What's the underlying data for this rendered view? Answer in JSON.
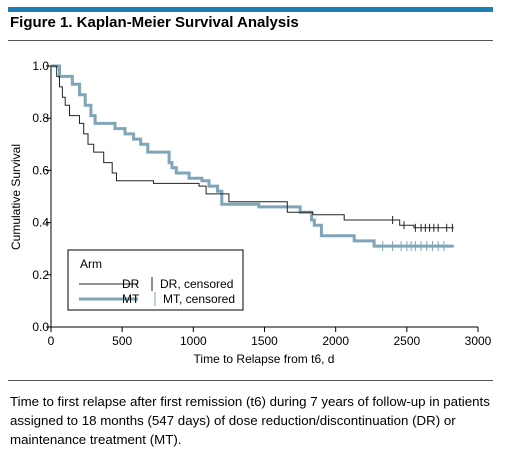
{
  "figure": {
    "title": "Figure 1. Kaplan-Meier Survival Analysis",
    "caption": "Time to first relapse after first remission (t6) during 7 years of follow-up in patients assigned to 18 months (547 days) of dose reduction/discontinuation (DR) or maintenance treatment (MT)."
  },
  "colors": {
    "accent_bar": "#1d7db5",
    "DR": "#222222",
    "MT": "#7fa5b8"
  },
  "chart_data": {
    "type": "line",
    "subtype": "kaplan-meier step",
    "xlabel": "Time to Relapse from t6, d",
    "ylabel": "Cumulative Survival",
    "xlim": [
      0,
      3000
    ],
    "ylim": [
      0,
      1.0
    ],
    "x_ticks": [
      "0",
      "500",
      "1000",
      "1500",
      "2000",
      "2500",
      "3000"
    ],
    "y_ticks": [
      "0.0",
      "0.2",
      "0.4",
      "0.6",
      "0.8",
      "1.0"
    ],
    "grid": false,
    "legend": {
      "title": "Arm",
      "placement": "bottom-left",
      "entries": [
        {
          "series": "DR",
          "label": "DR",
          "censored_label": "DR, censored"
        },
        {
          "series": "MT",
          "label": "MT",
          "censored_label": "MT, censored"
        }
      ]
    },
    "series": [
      {
        "name": "DR",
        "points": [
          [
            0,
            1.0
          ],
          [
            40,
            1.0
          ],
          [
            40,
            0.96
          ],
          [
            60,
            0.96
          ],
          [
            60,
            0.92
          ],
          [
            80,
            0.92
          ],
          [
            80,
            0.88
          ],
          [
            100,
            0.88
          ],
          [
            100,
            0.85
          ],
          [
            130,
            0.85
          ],
          [
            130,
            0.81
          ],
          [
            200,
            0.81
          ],
          [
            200,
            0.78
          ],
          [
            230,
            0.78
          ],
          [
            230,
            0.74
          ],
          [
            260,
            0.74
          ],
          [
            260,
            0.7
          ],
          [
            300,
            0.7
          ],
          [
            300,
            0.67
          ],
          [
            370,
            0.67
          ],
          [
            370,
            0.63
          ],
          [
            430,
            0.63
          ],
          [
            430,
            0.59
          ],
          [
            460,
            0.59
          ],
          [
            460,
            0.56
          ],
          [
            720,
            0.56
          ],
          [
            720,
            0.55
          ],
          [
            1040,
            0.55
          ],
          [
            1040,
            0.54
          ],
          [
            1090,
            0.54
          ],
          [
            1090,
            0.51
          ],
          [
            1250,
            0.51
          ],
          [
            1250,
            0.48
          ],
          [
            1660,
            0.48
          ],
          [
            1660,
            0.44
          ],
          [
            1840,
            0.44
          ],
          [
            1840,
            0.43
          ],
          [
            2060,
            0.43
          ],
          [
            2060,
            0.41
          ],
          [
            2450,
            0.41
          ],
          [
            2450,
            0.39
          ],
          [
            2550,
            0.39
          ],
          [
            2550,
            0.38
          ],
          [
            2830,
            0.38
          ]
        ],
        "censored_x": [
          2400,
          2480,
          2560,
          2600,
          2630,
          2660,
          2690,
          2720,
          2780,
          2820
        ]
      },
      {
        "name": "MT",
        "points": [
          [
            0,
            1.0
          ],
          [
            60,
            1.0
          ],
          [
            60,
            0.96
          ],
          [
            150,
            0.96
          ],
          [
            150,
            0.93
          ],
          [
            200,
            0.93
          ],
          [
            200,
            0.89
          ],
          [
            240,
            0.89
          ],
          [
            240,
            0.85
          ],
          [
            280,
            0.85
          ],
          [
            280,
            0.81
          ],
          [
            310,
            0.81
          ],
          [
            310,
            0.78
          ],
          [
            450,
            0.78
          ],
          [
            450,
            0.76
          ],
          [
            520,
            0.76
          ],
          [
            520,
            0.74
          ],
          [
            580,
            0.74
          ],
          [
            580,
            0.72
          ],
          [
            630,
            0.72
          ],
          [
            630,
            0.7
          ],
          [
            680,
            0.7
          ],
          [
            680,
            0.67
          ],
          [
            830,
            0.67
          ],
          [
            830,
            0.63
          ],
          [
            850,
            0.63
          ],
          [
            850,
            0.61
          ],
          [
            880,
            0.61
          ],
          [
            880,
            0.59
          ],
          [
            970,
            0.59
          ],
          [
            970,
            0.57
          ],
          [
            1060,
            0.57
          ],
          [
            1060,
            0.56
          ],
          [
            1110,
            0.56
          ],
          [
            1110,
            0.54
          ],
          [
            1170,
            0.54
          ],
          [
            1170,
            0.52
          ],
          [
            1200,
            0.52
          ],
          [
            1200,
            0.47
          ],
          [
            1460,
            0.47
          ],
          [
            1460,
            0.46
          ],
          [
            1750,
            0.46
          ],
          [
            1750,
            0.44
          ],
          [
            1830,
            0.44
          ],
          [
            1830,
            0.41
          ],
          [
            1850,
            0.41
          ],
          [
            1850,
            0.39
          ],
          [
            1900,
            0.39
          ],
          [
            1900,
            0.35
          ],
          [
            2130,
            0.35
          ],
          [
            2130,
            0.33
          ],
          [
            2270,
            0.33
          ],
          [
            2270,
            0.31
          ],
          [
            2830,
            0.31
          ]
        ],
        "censored_x": [
          2330,
          2400,
          2460,
          2500,
          2530,
          2560,
          2600,
          2640,
          2680,
          2720,
          2760
        ]
      }
    ]
  }
}
